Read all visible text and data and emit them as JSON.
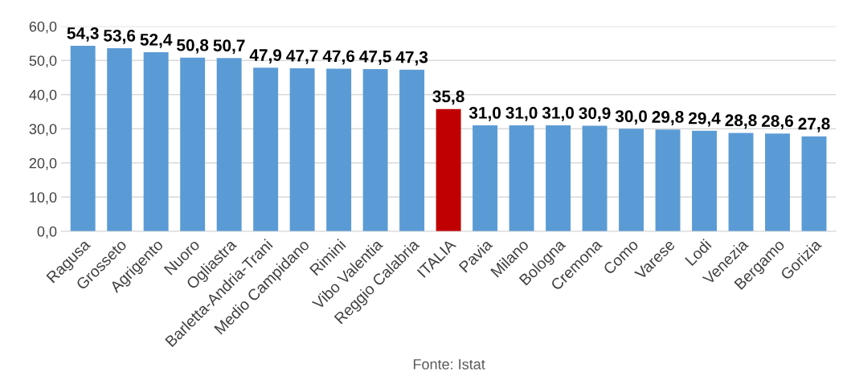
{
  "chart_data": {
    "type": "bar",
    "categories": [
      "Ragusa",
      "Grosseto",
      "Agrigento",
      "Nuoro",
      "Ogliastra",
      "Barletta-Andria-Trani",
      "Medio Campidano",
      "Rimini",
      "Vibo Valentia",
      "Reggio Calabria",
      "ITALIA",
      "Pavia",
      "Milano",
      "Bologna",
      "Cremona",
      "Como",
      "Varese",
      "Lodi",
      "Venezia",
      "Bergamo",
      "Gorizia"
    ],
    "values": [
      54.3,
      53.6,
      52.4,
      50.8,
      50.7,
      47.9,
      47.7,
      47.6,
      47.5,
      47.3,
      35.8,
      31.0,
      31.0,
      31.0,
      30.9,
      30.0,
      29.8,
      29.4,
      28.8,
      28.6,
      27.8
    ],
    "value_labels": [
      "54,3",
      "53,6",
      "52,4",
      "50,8",
      "50,7",
      "47,9",
      "47,7",
      "47,6",
      "47,5",
      "47,3",
      "35,8",
      "31,0",
      "31,0",
      "31,0",
      "30,9",
      "30,0",
      "29,8",
      "29,4",
      "28,8",
      "28,6",
      "27,8"
    ],
    "colors": [
      "#5b9bd5",
      "#5b9bd5",
      "#5b9bd5",
      "#5b9bd5",
      "#5b9bd5",
      "#5b9bd5",
      "#5b9bd5",
      "#5b9bd5",
      "#5b9bd5",
      "#5b9bd5",
      "#c00000",
      "#5b9bd5",
      "#5b9bd5",
      "#5b9bd5",
      "#5b9bd5",
      "#5b9bd5",
      "#5b9bd5",
      "#5b9bd5",
      "#5b9bd5",
      "#5b9bd5",
      "#5b9bd5"
    ],
    "ylim": [
      0,
      60
    ],
    "yticks": [
      {
        "value": 0,
        "label": "0,0"
      },
      {
        "value": 10,
        "label": "10,0"
      },
      {
        "value": 20,
        "label": "20,0"
      },
      {
        "value": 30,
        "label": "30,0"
      },
      {
        "value": 40,
        "label": "40,0"
      },
      {
        "value": 50,
        "label": "50,0"
      },
      {
        "value": 60,
        "label": "60,0"
      }
    ],
    "grid": "y",
    "annotations": [
      "Fonte: Istat"
    ]
  }
}
